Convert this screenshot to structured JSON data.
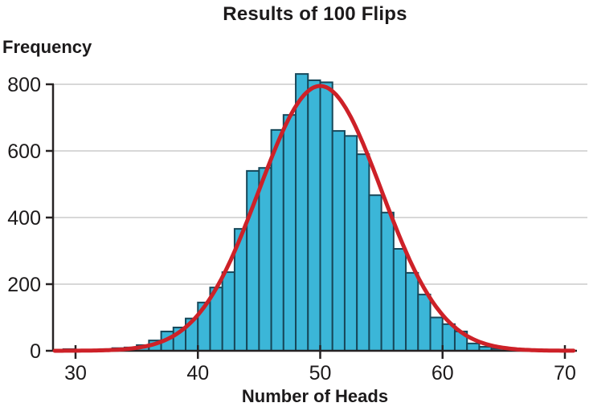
{
  "figure": {
    "title": "Results of 100 Flips",
    "ylabel": "Frequency",
    "xlabel": "Number of Heads"
  },
  "chart_data": {
    "type": "bar",
    "subtype": "histogram",
    "title": "Results of 100 Flips",
    "xlabel": "Number of Heads",
    "ylabel": "Frequency",
    "xlim": [
      28.2,
      71
    ],
    "ylim": [
      0,
      800
    ],
    "x_ticks": [
      30,
      40,
      50,
      60,
      70
    ],
    "y_ticks": [
      0,
      200,
      400,
      600,
      800
    ],
    "grid": "horizontal",
    "legend": "none",
    "bins": {
      "start": 29,
      "width": 1,
      "frequencies": [
        5,
        2,
        3,
        5,
        8,
        10,
        17,
        31,
        58,
        70,
        97,
        145,
        190,
        236,
        366,
        540,
        549,
        663,
        708,
        831,
        812,
        806,
        660,
        645,
        590,
        467,
        415,
        306,
        234,
        169,
        100,
        80,
        58,
        22,
        12,
        6,
        3,
        2
      ]
    },
    "overlay_curve": {
      "shape": "normal",
      "mean": 50,
      "sd": 5,
      "peak": 795
    },
    "colors": {
      "bar_fill": "#3bb6d8",
      "bar_edge": "#17485a",
      "curve": "#cd2128",
      "grid": "#cbcbcb",
      "axis": "#262223",
      "text": "#1c1a1b"
    }
  }
}
